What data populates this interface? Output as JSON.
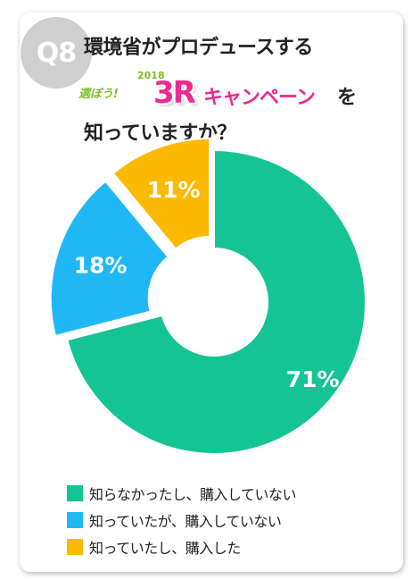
{
  "question": {
    "badge": "Q8",
    "line1": "環境省がプロデュースする",
    "campaign": {
      "lead": "選ぼう!",
      "year": "2018",
      "mark": "3R",
      "word": "キャンペーン",
      "particle": "を"
    },
    "line3": "知っていますか？"
  },
  "chart_data": {
    "type": "pie",
    "donut": true,
    "slices": [
      {
        "label": "知らなかったし、購入していない",
        "value": 71,
        "display": "71%",
        "color": "#14c494"
      },
      {
        "label": "知っていたが、購入していない",
        "value": 18,
        "display": "18%",
        "color": "#20b8f4"
      },
      {
        "label": "知っていたし、購入した",
        "value": 11,
        "display": "11%",
        "color": "#fdb900"
      }
    ],
    "legend_position": "bottom-left"
  }
}
